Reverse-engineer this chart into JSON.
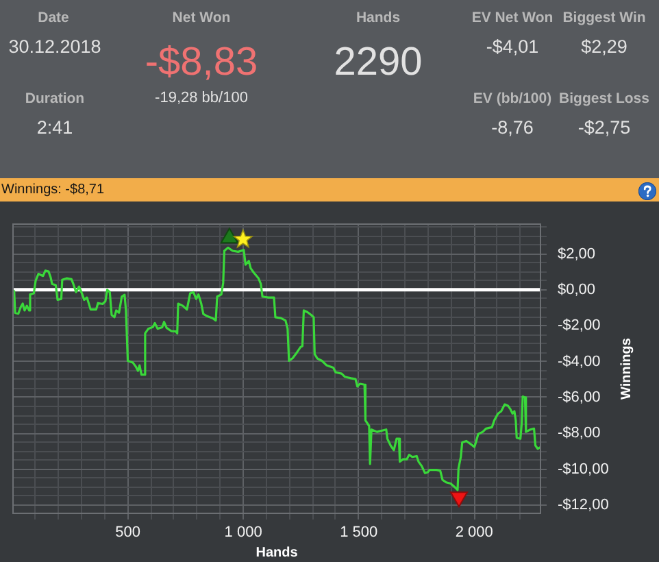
{
  "chart_data": {
    "type": "line",
    "title": "Winnings: -$8,71",
    "xlabel": "Hands",
    "ylabel": "Winnings",
    "annotations": [
      "Date",
      "30.12.2018",
      "Net Won",
      "-$8,83",
      "-19,28 bb/100",
      "Hands",
      "2290",
      "EV Net Won",
      "-$4,01",
      "Biggest Win",
      "$2,29",
      "Duration",
      "2:41",
      "EV (bb/100)",
      "-8,76",
      "Biggest Loss",
      "-$2,75"
    ],
    "xlim": [
      0,
      2290
    ],
    "xticks": [
      {
        "value": 100,
        "label": null
      },
      {
        "value": 200,
        "label": null
      },
      {
        "value": 300,
        "label": null
      },
      {
        "value": 400,
        "label": null
      },
      500,
      {
        "value": 600,
        "label": null
      },
      {
        "value": 700,
        "label": null
      },
      {
        "value": 800,
        "label": null
      },
      {
        "value": 900,
        "label": null
      },
      {
        "value": 1000,
        "label": "1 000"
      },
      {
        "value": 1100,
        "label": null
      },
      {
        "value": 1200,
        "label": null
      },
      {
        "value": 1300,
        "label": null
      },
      {
        "value": 1400,
        "label": null
      },
      {
        "value": 1500,
        "label": "1 500"
      },
      {
        "value": 1600,
        "label": null
      },
      {
        "value": 1700,
        "label": null
      },
      {
        "value": 1800,
        "label": null
      },
      {
        "value": 1900,
        "label": null
      },
      {
        "value": 2000,
        "label": "2 000"
      },
      {
        "value": 2100,
        "label": null
      },
      {
        "value": 2200,
        "label": null
      }
    ],
    "ylim": [
      -12.5,
      3.7
    ],
    "yticks": [
      {
        "value": -12,
        "label": "-$12,00"
      },
      {
        "value": -11.5,
        "label": null
      },
      {
        "value": -11,
        "label": null
      },
      {
        "value": -10.5,
        "label": null
      },
      {
        "value": -10,
        "label": "-$10,00"
      },
      {
        "value": -9.5,
        "label": null
      },
      {
        "value": -9,
        "label": null
      },
      {
        "value": -8.5,
        "label": null
      },
      {
        "value": -8,
        "label": "-$8,00"
      },
      {
        "value": -7.5,
        "label": null
      },
      {
        "value": -7,
        "label": null
      },
      {
        "value": -6.5,
        "label": null
      },
      {
        "value": -6,
        "label": "-$6,00"
      },
      {
        "value": -5.5,
        "label": null
      },
      {
        "value": -5,
        "label": null
      },
      {
        "value": -4.5,
        "label": null
      },
      {
        "value": -4,
        "label": "-$4,00"
      },
      {
        "value": -3.5,
        "label": null
      },
      {
        "value": -3,
        "label": null
      },
      {
        "value": -2.5,
        "label": null
      },
      {
        "value": -2,
        "label": "-$2,00"
      },
      {
        "value": -1.5,
        "label": null
      },
      {
        "value": -1,
        "label": null
      },
      {
        "value": -0.5,
        "label": null
      },
      {
        "value": 0,
        "label": "$0,00"
      },
      {
        "value": 0.5,
        "label": null
      },
      {
        "value": 1,
        "label": null
      },
      {
        "value": 1.5,
        "label": null
      },
      {
        "value": 2,
        "label": "$2,00"
      },
      {
        "value": 2.5,
        "label": null
      },
      {
        "value": 3,
        "label": null
      },
      {
        "value": 3.5,
        "label": null
      }
    ],
    "grid": true,
    "ref_lines": [
      {
        "axis": "y",
        "value": 0,
        "color": "#ffffff"
      }
    ],
    "series": [
      {
        "color": "#3ad83a",
        "marker": "none",
        "x": [
          0,
          8,
          12,
          26,
          36,
          45,
          53,
          63,
          73,
          77,
          93,
          101,
          113,
          133,
          143,
          157,
          166,
          172,
          188,
          196,
          212,
          216,
          236,
          256,
          264,
          276,
          289,
          303,
          311,
          323,
          339,
          363,
          371,
          391,
          403,
          411,
          422,
          430,
          442,
          450,
          462,
          474,
          486,
          492,
          500,
          522,
          534,
          544,
          551,
          559,
          571,
          575,
          589,
          609,
          617,
          629,
          649,
          657,
          668,
          688,
          708,
          714,
          718,
          738,
          756,
          770,
          784,
          796,
          806,
          818,
          827,
          845,
          867,
          881,
          887,
          905,
          913,
          918,
          934,
          954,
          978,
          1002,
          1010,
          1024,
          1032,
          1046,
          1066,
          1076,
          1083,
          1109,
          1133,
          1139,
          1163,
          1183,
          1192,
          1198,
          1214,
          1232,
          1248,
          1256,
          1262,
          1278,
          1294,
          1305,
          1309,
          1321,
          1341,
          1361,
          1390,
          1400,
          1426,
          1440,
          1466,
          1486,
          1494,
          1505,
          1525,
          1529,
          1545,
          1549,
          1555,
          1579,
          1619,
          1624,
          1638,
          1652,
          1664,
          1674,
          1678,
          1692,
          1708,
          1718,
          1732,
          1751,
          1759,
          1773,
          1787,
          1799,
          1807,
          1837,
          1853,
          1863,
          1878,
          1898,
          1914,
          1928,
          1932,
          1942,
          1948,
          1966,
          1986,
          2001,
          2009,
          2017,
          2037,
          2051,
          2077,
          2087,
          2103,
          2117,
          2132,
          2146,
          2156,
          2166,
          2174,
          2180,
          2184,
          2200,
          2206,
          2210,
          2220,
          2224,
          2243,
          2259,
          2265,
          2275,
          2289,
          2290
        ],
        "values": [
          0,
          -0.08,
          -1.28,
          -1.33,
          -0.97,
          -0.77,
          -1.15,
          -0.89,
          -1.15,
          -0.26,
          -0.2,
          0.51,
          0.89,
          0.77,
          1.07,
          1.02,
          0.69,
          0.33,
          0.26,
          -0.56,
          -0.51,
          0.56,
          0.64,
          0.59,
          0.33,
          -0.13,
          0.18,
          -0.26,
          -0.56,
          -0.43,
          -1.1,
          -1.1,
          -0.74,
          -0.79,
          -0.64,
          0,
          -0.13,
          -1.4,
          -1.53,
          -1.15,
          -1.28,
          -0.38,
          -0.28,
          -1.15,
          -3.96,
          -4.06,
          -4.27,
          -4.52,
          -4.21,
          -4.73,
          -4.73,
          -2.43,
          -2.17,
          -2.07,
          -1.86,
          -2.17,
          -2.09,
          -1.79,
          -2.12,
          -2.3,
          -2.32,
          -2.43,
          -0.77,
          -0.89,
          -1.1,
          -0.2,
          -0.13,
          -0.51,
          -0.26,
          -0.77,
          -1.35,
          -1.48,
          -1.58,
          -1.71,
          -0.38,
          -0.26,
          0.38,
          2.17,
          2.35,
          2.17,
          2.12,
          2.22,
          1.4,
          1.61,
          1.2,
          0.95,
          0.64,
          0.33,
          -0.38,
          -0.43,
          -0.43,
          -1.53,
          -1.58,
          -1.71,
          -2.17,
          -3.96,
          -3.81,
          -3.5,
          -3.19,
          -3.14,
          -1.15,
          -1.25,
          -1.4,
          -1.53,
          -3.58,
          -3.83,
          -3.96,
          -4.21,
          -4.34,
          -4.6,
          -4.67,
          -4.85,
          -4.93,
          -4.98,
          -5.39,
          -5.24,
          -5.29,
          -7.28,
          -7.59,
          -9.71,
          -7.79,
          -7.92,
          -7.79,
          -8.3,
          -8.68,
          -8.94,
          -8.3,
          -8.3,
          -9.58,
          -9.45,
          -9.45,
          -9.2,
          -9.32,
          -9.27,
          -9.58,
          -9.83,
          -10.22,
          -10.17,
          -10.04,
          -10.04,
          -10.09,
          -10.6,
          -10.73,
          -10.8,
          -10.98,
          -11.16,
          -9.96,
          -9.32,
          -8.51,
          -8.43,
          -8.61,
          -8.76,
          -8.43,
          -8.05,
          -7.92,
          -7.74,
          -7.66,
          -7.28,
          -6.9,
          -6.77,
          -6.39,
          -6.46,
          -6.64,
          -6.9,
          -6.77,
          -7.28,
          -8.25,
          -8.3,
          -7.41,
          -5.95,
          -6.0,
          -7.92,
          -7.79,
          -7.74,
          -8.68,
          -8.86,
          -8.76,
          -8.71
        ]
      },
      {
        "type": "scatter",
        "color": "#1c7a1c",
        "marker": "triangle",
        "x": [
          940
        ],
        "values": [
          2.89
        ]
      },
      {
        "type": "scatter",
        "color": "#fff01e",
        "marker": "star",
        "x": [
          999
        ],
        "values": [
          2.81
        ]
      },
      {
        "type": "scatter",
        "color": "#ee1414",
        "marker": "triangle-down",
        "x": [
          1934
        ],
        "values": [
          -11.55
        ]
      }
    ]
  }
}
